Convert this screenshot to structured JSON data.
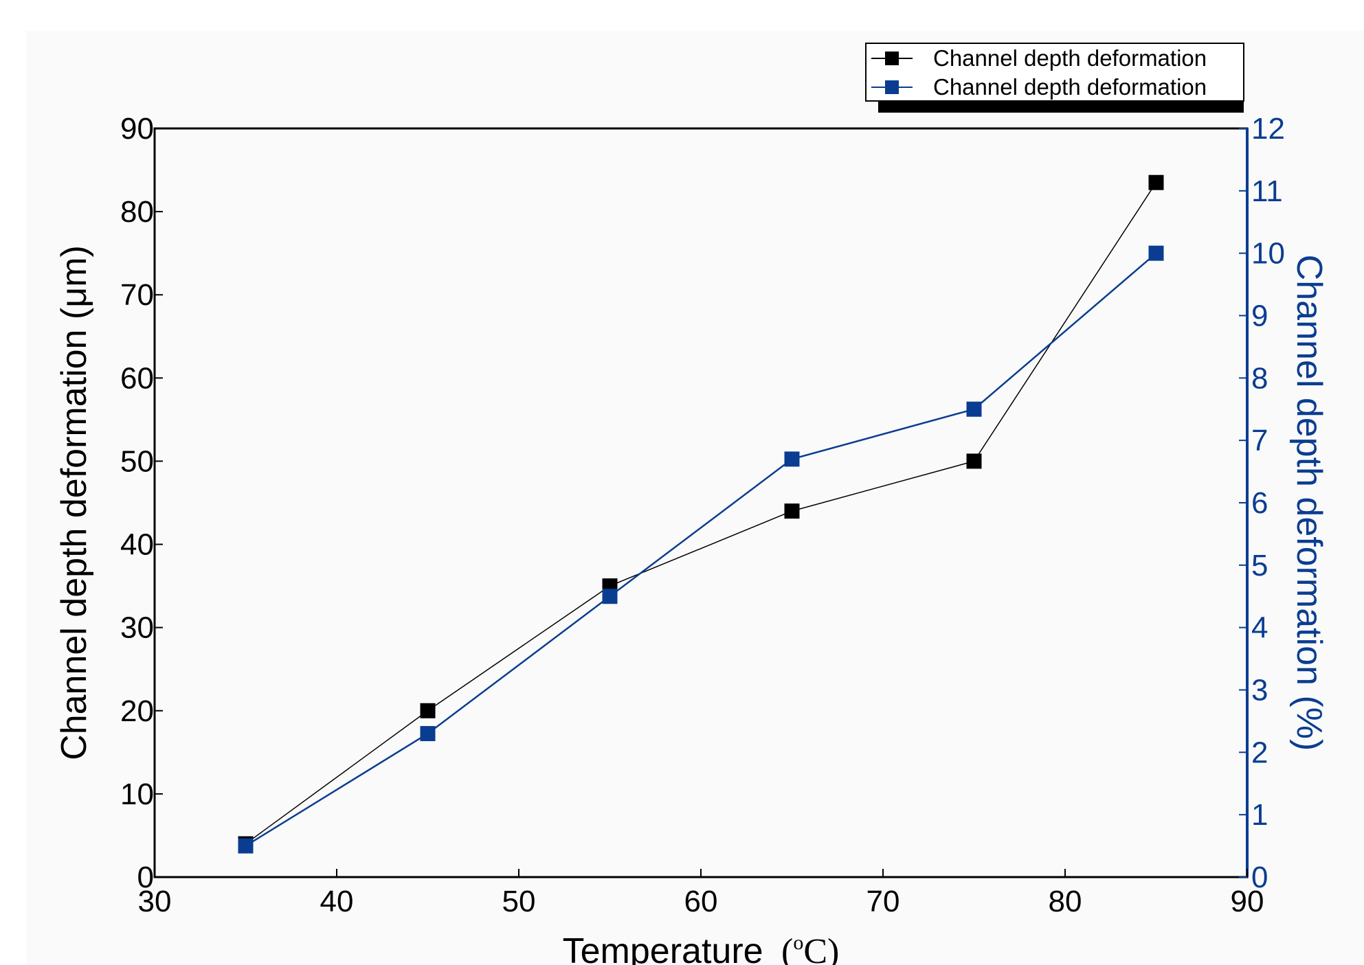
{
  "chart_data": {
    "type": "line",
    "title": "",
    "xlabel": "Temperature",
    "xlabel_unit": "(°C)",
    "xlabel_unit_parts": {
      "open": "(",
      "degree": "o",
      "letter": "C",
      "close": ")"
    },
    "ylabel_left": "Channel depth deformation (μm)",
    "ylabel_right": "Channel depth deformation (%)",
    "xlim": [
      30,
      90
    ],
    "ylim_left": [
      0,
      90
    ],
    "ylim_right": [
      0,
      12
    ],
    "x_ticks": [
      30,
      40,
      50,
      60,
      70,
      80,
      90
    ],
    "y_left_ticks": [
      0,
      10,
      20,
      30,
      40,
      50,
      60,
      70,
      80,
      90
    ],
    "y_right_ticks": [
      0,
      1,
      2,
      3,
      4,
      5,
      6,
      7,
      8,
      9,
      10,
      11,
      12
    ],
    "grid": false,
    "legend_position": "top-right",
    "series": [
      {
        "name": "Channel depth deformation",
        "axis": "left",
        "color": "#000000",
        "marker": "square",
        "x": [
          35,
          45,
          55,
          65,
          75,
          85
        ],
        "values": [
          4,
          20,
          35,
          44,
          50,
          83.5
        ]
      },
      {
        "name": "Channel depth deformation",
        "axis": "right",
        "color": "#0a3d91",
        "marker": "square",
        "x": [
          35,
          45,
          55,
          65,
          75,
          85
        ],
        "values": [
          0.5,
          2.3,
          4.5,
          6.7,
          7.5,
          10
        ]
      }
    ]
  }
}
